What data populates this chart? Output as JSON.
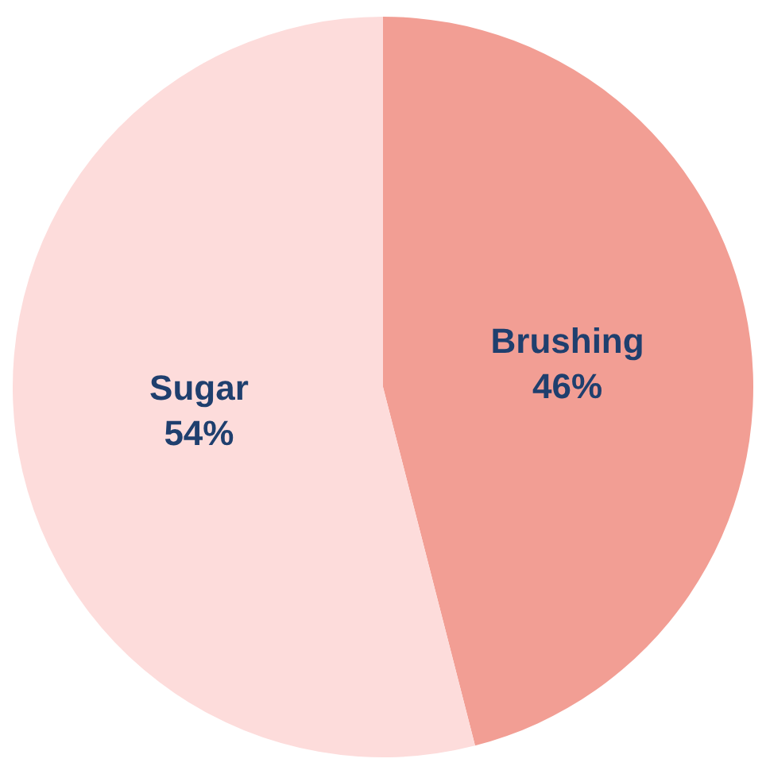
{
  "chart_data": {
    "type": "pie",
    "categories": [
      "Brushing",
      "Sugar"
    ],
    "values": [
      46,
      54
    ],
    "value_labels": [
      "46%",
      "54%"
    ],
    "colors": [
      "#f29e94",
      "#fddcdb"
    ],
    "legend": false
  }
}
